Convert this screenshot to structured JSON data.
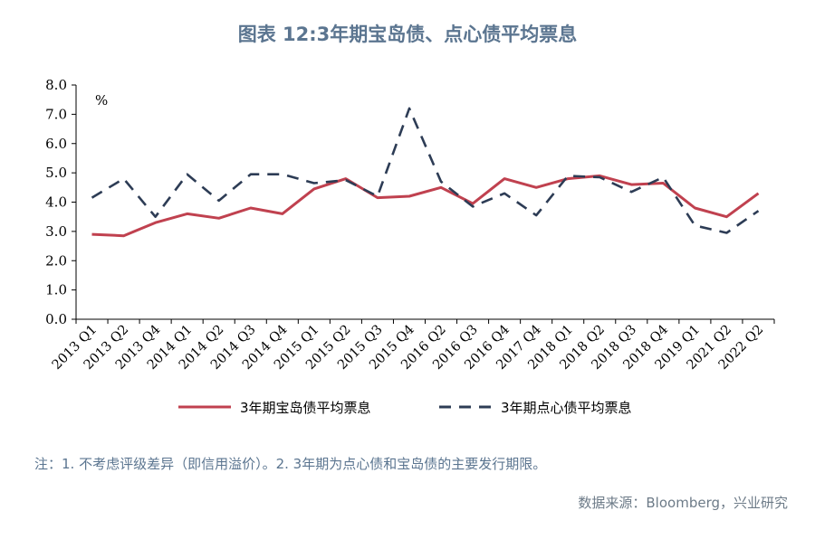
{
  "title": "图表 12:3年期宝岛债、点心债平均票息",
  "note": "注：1. 不考虑评级差异（即信用溢价）。2. 3年期为点心债和宝岛债的主要发行期限。",
  "source": "数据来源：Bloomberg，兴业研究",
  "chart_data": {
    "type": "line",
    "title": "图表 12:3年期宝岛债、点心债平均票息",
    "ylabel": "%",
    "ylim": [
      0,
      8
    ],
    "yticks": [
      "0.0",
      "1.0",
      "2.0",
      "3.0",
      "4.0",
      "5.0",
      "6.0",
      "7.0",
      "8.0"
    ],
    "grid": false,
    "legend": "bottom",
    "categories": [
      "2013 Q1",
      "2013 Q2",
      "2013 Q4",
      "2014 Q1",
      "2014 Q2",
      "2014 Q3",
      "2014 Q4",
      "2015 Q1",
      "2015 Q2",
      "2015 Q3",
      "2015 Q4",
      "2016 Q2",
      "2016 Q3",
      "2016 Q4",
      "2017 Q4",
      "2018 Q1",
      "2018 Q2",
      "2018 Q3",
      "2018 Q4",
      "2019 Q1",
      "2021 Q2",
      "2022 Q2"
    ],
    "series": [
      {
        "name": "3年期宝岛债平均票息",
        "color": "#c0414f",
        "style": "solid",
        "values": [
          2.9,
          2.85,
          3.3,
          3.6,
          3.45,
          3.8,
          3.6,
          4.45,
          4.8,
          4.15,
          4.2,
          4.5,
          3.95,
          4.8,
          4.5,
          4.8,
          4.9,
          4.6,
          4.65,
          3.8,
          3.5,
          4.3
        ]
      },
      {
        "name": "3年期点心债平均票息",
        "color": "#2d3c55",
        "style": "dashed",
        "values": [
          4.15,
          4.8,
          3.5,
          4.95,
          4.05,
          4.95,
          4.95,
          4.65,
          4.75,
          4.2,
          7.2,
          4.7,
          3.85,
          4.3,
          3.55,
          4.9,
          4.85,
          4.35,
          4.85,
          3.2,
          2.95,
          3.7
        ]
      }
    ]
  }
}
